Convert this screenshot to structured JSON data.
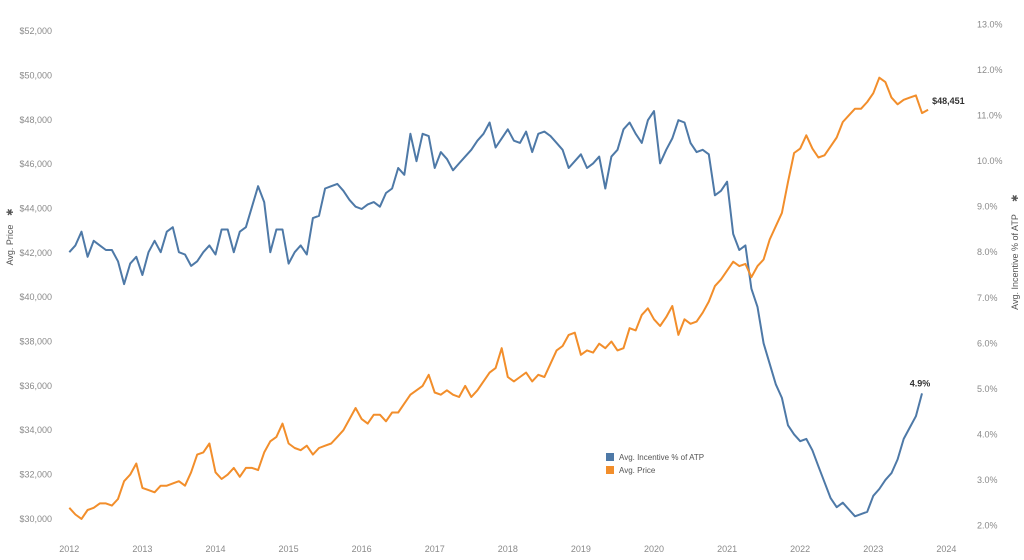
{
  "chart_data": {
    "type": "line",
    "ylabel": "Avg. Price",
    "ylabel_icon": "sort-icon",
    "y2label": "Avg. Incentive % of ATP",
    "y2label_icon": "sort-icon",
    "ylim": [
      29500,
      52500
    ],
    "y2lim": [
      1.9,
      13.1
    ],
    "xlim": [
      2011.9,
      2024.05
    ],
    "x_ticks": [
      2012,
      2013,
      2014,
      2015,
      2016,
      2017,
      2018,
      2019,
      2020,
      2021,
      2022,
      2023,
      2024
    ],
    "y_ticks": [
      "$30,000",
      "$32,000",
      "$34,000",
      "$36,000",
      "$38,000",
      "$40,000",
      "$42,000",
      "$44,000",
      "$46,000",
      "$48,000",
      "$50,000",
      "$52,000"
    ],
    "y_tick_values": [
      30000,
      32000,
      34000,
      36000,
      38000,
      40000,
      42000,
      44000,
      46000,
      48000,
      50000,
      52000
    ],
    "y2_ticks": [
      "2.0%",
      "3.0%",
      "4.0%",
      "5.0%",
      "6.0%",
      "7.0%",
      "8.0%",
      "9.0%",
      "10.0%",
      "11.0%",
      "12.0%",
      "13.0%"
    ],
    "y2_tick_values": [
      2,
      3,
      4,
      5,
      6,
      7,
      8,
      9,
      10,
      11,
      12,
      13
    ],
    "legend": {
      "position": "bottom-center",
      "entries": [
        "Avg. Incentive % of ATP",
        "Avg. Price"
      ]
    },
    "grid": false,
    "series": [
      {
        "name": "Avg. Incentive % of ATP",
        "axis": "right",
        "color": "#4e79a7",
        "end_label": "4.9%",
        "start": "2012-01",
        "values": [
          8.0,
          8.15,
          8.45,
          7.9,
          8.25,
          8.15,
          8.05,
          8.05,
          7.8,
          7.3,
          7.75,
          7.9,
          7.5,
          8.0,
          8.25,
          8.0,
          8.45,
          8.55,
          8.0,
          7.95,
          7.7,
          7.8,
          8.0,
          8.15,
          7.95,
          8.5,
          8.5,
          8.0,
          8.45,
          8.55,
          9.0,
          9.45,
          9.1,
          8.0,
          8.5,
          8.5,
          7.75,
          8.0,
          8.15,
          7.95,
          8.75,
          8.8,
          9.4,
          9.45,
          9.5,
          9.35,
          9.15,
          9.0,
          8.95,
          9.05,
          9.1,
          9.0,
          9.3,
          9.4,
          9.85,
          9.7,
          10.6,
          10.0,
          10.6,
          10.55,
          9.85,
          10.2,
          10.05,
          9.8,
          9.95,
          10.1,
          10.25,
          10.45,
          10.6,
          10.85,
          10.3,
          10.5,
          10.7,
          10.45,
          10.4,
          10.65,
          10.2,
          10.6,
          10.65,
          10.55,
          10.4,
          10.25,
          9.85,
          10.0,
          10.15,
          9.85,
          9.95,
          10.1,
          9.4,
          10.1,
          10.25,
          10.7,
          10.85,
          10.6,
          10.4,
          10.9,
          11.1,
          9.95,
          10.25,
          10.5,
          10.9,
          10.85,
          10.4,
          10.2,
          10.25,
          10.15,
          9.25,
          9.35,
          9.55,
          8.4,
          8.05,
          8.15,
          7.2,
          6.8,
          6.0,
          5.55,
          5.1,
          4.8,
          4.2,
          4.0,
          3.85,
          3.9,
          3.65,
          3.3,
          2.95,
          2.6,
          2.4,
          2.5,
          2.35,
          2.2,
          2.25,
          2.3,
          2.65,
          2.8,
          3.0,
          3.15,
          3.45,
          3.9,
          4.15,
          4.4,
          4.9
        ]
      },
      {
        "name": "Avg. Price",
        "axis": "left",
        "color": "#f28e2b",
        "end_label": "$48,451",
        "start": "2012-01",
        "values": [
          30500,
          30200,
          30000,
          30400,
          30500,
          30700,
          30700,
          30600,
          30900,
          31700,
          32000,
          32500,
          31400,
          31300,
          31200,
          31500,
          31500,
          31600,
          31700,
          31500,
          32100,
          32900,
          33000,
          33400,
          32100,
          31800,
          32000,
          32300,
          31900,
          32300,
          32300,
          32200,
          33000,
          33500,
          33700,
          34300,
          33400,
          33200,
          33100,
          33300,
          32900,
          33200,
          33300,
          33400,
          33700,
          34000,
          34500,
          35000,
          34500,
          34300,
          34700,
          34700,
          34400,
          34800,
          34800,
          35200,
          35600,
          35800,
          36000,
          36500,
          35700,
          35600,
          35800,
          35600,
          35500,
          36000,
          35500,
          35800,
          36200,
          36600,
          36800,
          37700,
          36400,
          36200,
          36400,
          36600,
          36200,
          36500,
          36400,
          37000,
          37600,
          37800,
          38300,
          38400,
          37400,
          37600,
          37500,
          37900,
          37700,
          38000,
          37600,
          37700,
          38600,
          38500,
          39200,
          39500,
          39000,
          38700,
          39100,
          39600,
          38300,
          39000,
          38800,
          38900,
          39300,
          39800,
          40500,
          40800,
          41200,
          41600,
          41400,
          41500,
          40900,
          41400,
          41700,
          42600,
          43200,
          43800,
          45200,
          46500,
          46700,
          47300,
          46700,
          46300,
          46400,
          46800,
          47200,
          47900,
          48200,
          48500,
          48500,
          48800,
          49200,
          49900,
          49700,
          49000,
          48700,
          48900,
          49000,
          49100,
          48300,
          48450
        ]
      }
    ]
  }
}
